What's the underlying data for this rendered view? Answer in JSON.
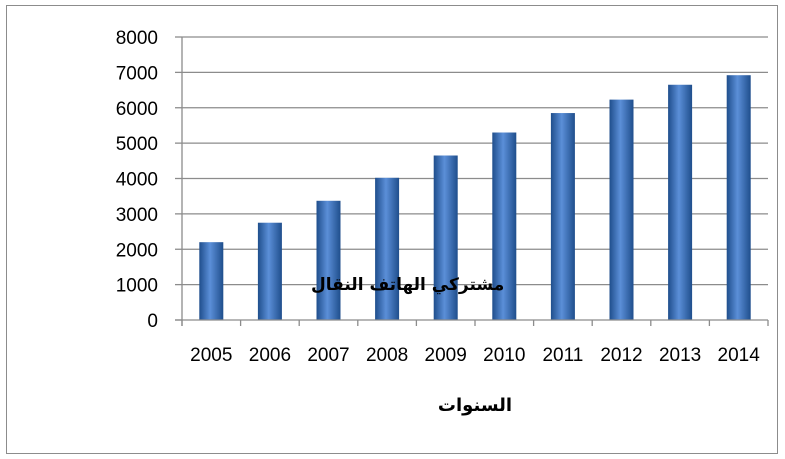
{
  "chart_data": {
    "type": "bar",
    "categories": [
      "2005",
      "2006",
      "2007",
      "2008",
      "2009",
      "2010",
      "2011",
      "2012",
      "2013",
      "2014"
    ],
    "values": [
      2200,
      2750,
      3370,
      4020,
      4650,
      5300,
      5850,
      6230,
      6650,
      6920
    ],
    "xlabel": "السنوات",
    "ylabel": "مشتركي الهاتف النقال",
    "ylim": [
      0,
      8000
    ],
    "yticks": [
      0,
      1000,
      2000,
      3000,
      4000,
      5000,
      6000,
      7000,
      8000
    ],
    "grid": true,
    "legend": "none",
    "colors": {
      "bar_dark": "#1F4E8C",
      "bar_light": "#5B8FD8",
      "grid": "#8C8C8C"
    }
  }
}
